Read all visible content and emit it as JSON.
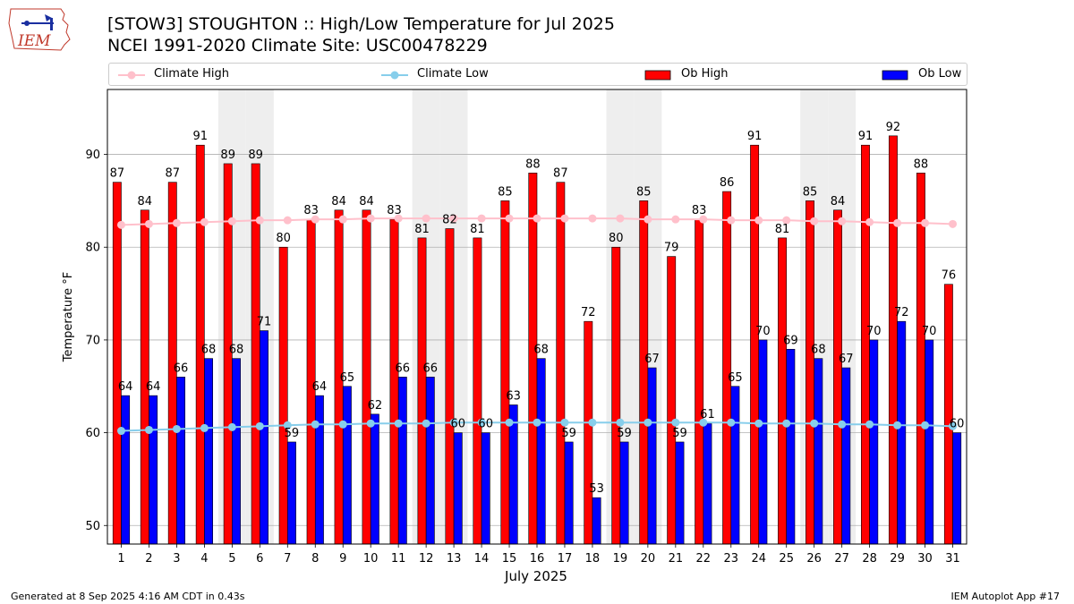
{
  "header": {
    "title_line1": "[STOW3] STOUGHTON :: High/Low Temperature for Jul 2025",
    "title_line2": "NCEI 1991-2020 Climate Site: USC00478229",
    "logo_text": "IEM"
  },
  "footer": {
    "left": "Generated at 8 Sep 2025 4:16 AM CDT in 0.43s",
    "right": "IEM Autoplot App #17"
  },
  "legend": [
    {
      "label": "Climate High",
      "kind": "line",
      "color": "#ffc0cb"
    },
    {
      "label": "Climate Low",
      "kind": "line",
      "color": "#87ceeb"
    },
    {
      "label": "Ob High",
      "kind": "bar",
      "color": "#ff0000"
    },
    {
      "label": "Ob Low",
      "kind": "bar",
      "color": "#0000ff"
    }
  ],
  "chart_data": {
    "type": "bar",
    "xlabel": "July 2025",
    "ylabel": "Temperature °F",
    "ylim": [
      48,
      97
    ],
    "yticks": [
      50,
      60,
      70,
      80,
      90
    ],
    "grid": "horizontal",
    "categories": [
      "1",
      "2",
      "3",
      "4",
      "5",
      "6",
      "7",
      "8",
      "9",
      "10",
      "11",
      "12",
      "13",
      "14",
      "15",
      "16",
      "17",
      "18",
      "19",
      "20",
      "21",
      "22",
      "23",
      "24",
      "25",
      "26",
      "27",
      "28",
      "29",
      "30",
      "31"
    ],
    "weekend_days": [
      5,
      6,
      12,
      13,
      19,
      20,
      26,
      27
    ],
    "weekend_color": "#eeeeee",
    "series": [
      {
        "name": "Ob High",
        "color": "#ff0000",
        "values": [
          87,
          84,
          87,
          91,
          89,
          89,
          80,
          83,
          84,
          84,
          83,
          81,
          82,
          81,
          85,
          88,
          87,
          72,
          80,
          85,
          79,
          83,
          86,
          91,
          81,
          85,
          84,
          91,
          92,
          88,
          76
        ]
      },
      {
        "name": "Ob Low",
        "color": "#0000ff",
        "values": [
          64,
          64,
          66,
          68,
          68,
          71,
          59,
          64,
          65,
          62,
          66,
          66,
          60,
          60,
          63,
          68,
          59,
          53,
          59,
          67,
          59,
          61,
          65,
          70,
          69,
          68,
          67,
          70,
          72,
          70,
          60
        ]
      },
      {
        "name": "Climate High",
        "color": "#ffc0cb",
        "values": [
          82.4,
          82.5,
          82.6,
          82.7,
          82.8,
          82.9,
          82.9,
          83.0,
          83.0,
          83.1,
          83.1,
          83.1,
          83.1,
          83.1,
          83.1,
          83.1,
          83.1,
          83.1,
          83.1,
          83.0,
          83.0,
          83.0,
          82.9,
          82.9,
          82.9,
          82.8,
          82.8,
          82.7,
          82.6,
          82.6,
          82.5
        ]
      },
      {
        "name": "Climate Low",
        "color": "#87ceeb",
        "values": [
          60.2,
          60.3,
          60.4,
          60.5,
          60.6,
          60.7,
          60.8,
          60.9,
          60.9,
          61.0,
          61.0,
          61.0,
          61.1,
          61.1,
          61.1,
          61.1,
          61.1,
          61.1,
          61.1,
          61.1,
          61.1,
          61.1,
          61.1,
          61.0,
          61.0,
          61.0,
          60.9,
          60.9,
          60.8,
          60.8,
          60.7
        ]
      }
    ]
  }
}
